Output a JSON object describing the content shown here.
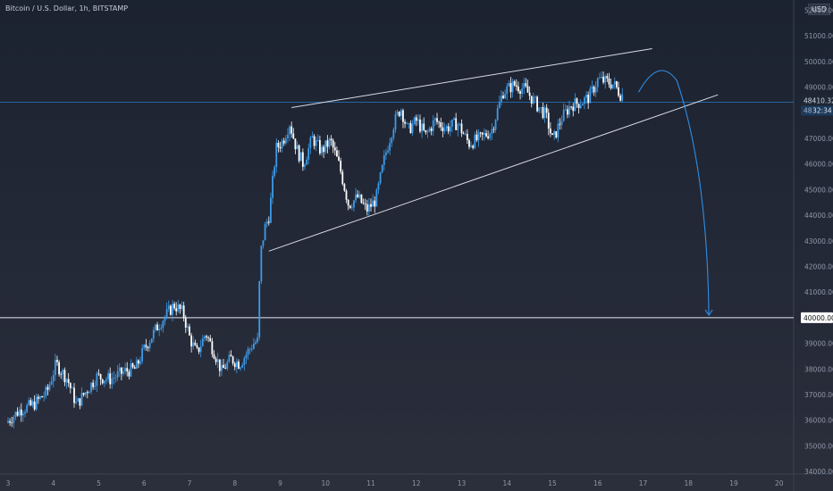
{
  "symbol_title": "Bitcoin / U.S. Dollar, 1h, BITSTAMP",
  "currency": "USD",
  "colors": {
    "candle_up": "#3d9be9",
    "candle_down": "#ffffff",
    "trendline": "#d8dce4",
    "arrow": "#2f8ee6",
    "support_line": "#e6e9ef",
    "current_price_line": "#2f8ee6"
  },
  "chart_data": {
    "type": "candlestick",
    "x_axis": {
      "ticks": [
        "3",
        "4",
        "5",
        "6",
        "7",
        "8",
        "9",
        "10",
        "11",
        "12",
        "13",
        "14",
        "15",
        "16",
        "17",
        "18",
        "19",
        "20"
      ]
    },
    "y_axis": {
      "ticks": [
        "34000.00",
        "35000.00",
        "36000.00",
        "37000.00",
        "38000.00",
        "39000.00",
        "40000.00",
        "41000.00",
        "42000.00",
        "43000.00",
        "44000.00",
        "45000.00",
        "46000.00",
        "47000.00",
        "48000.00",
        "49000.00",
        "50000.00",
        "51000.00",
        "52000.00"
      ],
      "range": [
        33900,
        52400
      ]
    },
    "price_path": [
      {
        "d": 3.0,
        "p": 35900
      },
      {
        "d": 3.3,
        "p": 36400
      },
      {
        "d": 3.6,
        "p": 36600
      },
      {
        "d": 3.9,
        "p": 37100
      },
      {
        "d": 4.1,
        "p": 38200
      },
      {
        "d": 4.35,
        "p": 37600
      },
      {
        "d": 4.55,
        "p": 36600
      },
      {
        "d": 4.75,
        "p": 37100
      },
      {
        "d": 5.0,
        "p": 37700
      },
      {
        "d": 5.3,
        "p": 37600
      },
      {
        "d": 5.6,
        "p": 37900
      },
      {
        "d": 5.85,
        "p": 38000
      },
      {
        "d": 6.05,
        "p": 38800
      },
      {
        "d": 6.35,
        "p": 39700
      },
      {
        "d": 6.7,
        "p": 40500
      },
      {
        "d": 6.9,
        "p": 40200
      },
      {
        "d": 7.05,
        "p": 39200
      },
      {
        "d": 7.2,
        "p": 38600
      },
      {
        "d": 7.4,
        "p": 39400
      },
      {
        "d": 7.6,
        "p": 38600
      },
      {
        "d": 7.75,
        "p": 37900
      },
      {
        "d": 7.95,
        "p": 38400
      },
      {
        "d": 8.15,
        "p": 38200
      },
      {
        "d": 8.3,
        "p": 38600
      },
      {
        "d": 8.45,
        "p": 39000
      },
      {
        "d": 8.55,
        "p": 39100
      },
      {
        "d": 8.6,
        "p": 42400
      },
      {
        "d": 8.7,
        "p": 43500
      },
      {
        "d": 8.8,
        "p": 44000
      },
      {
        "d": 8.95,
        "p": 46600
      },
      {
        "d": 9.1,
        "p": 46900
      },
      {
        "d": 9.25,
        "p": 47600
      },
      {
        "d": 9.4,
        "p": 46600
      },
      {
        "d": 9.55,
        "p": 46000
      },
      {
        "d": 9.75,
        "p": 47000
      },
      {
        "d": 9.95,
        "p": 46500
      },
      {
        "d": 10.15,
        "p": 46900
      },
      {
        "d": 10.35,
        "p": 45900
      },
      {
        "d": 10.55,
        "p": 44400
      },
      {
        "d": 10.75,
        "p": 44700
      },
      {
        "d": 10.95,
        "p": 44200
      },
      {
        "d": 11.15,
        "p": 44600
      },
      {
        "d": 11.35,
        "p": 46300
      },
      {
        "d": 11.55,
        "p": 47600
      },
      {
        "d": 11.7,
        "p": 48200
      },
      {
        "d": 11.85,
        "p": 47300
      },
      {
        "d": 12.05,
        "p": 47700
      },
      {
        "d": 12.25,
        "p": 47100
      },
      {
        "d": 12.45,
        "p": 47700
      },
      {
        "d": 12.7,
        "p": 47400
      },
      {
        "d": 12.95,
        "p": 47600
      },
      {
        "d": 13.2,
        "p": 46800
      },
      {
        "d": 13.45,
        "p": 47000
      },
      {
        "d": 13.7,
        "p": 47300
      },
      {
        "d": 13.95,
        "p": 48800
      },
      {
        "d": 14.2,
        "p": 49100
      },
      {
        "d": 14.45,
        "p": 48900
      },
      {
        "d": 14.7,
        "p": 48300
      },
      {
        "d": 14.9,
        "p": 47900
      },
      {
        "d": 15.05,
        "p": 46900
      },
      {
        "d": 15.25,
        "p": 47800
      },
      {
        "d": 15.45,
        "p": 48300
      },
      {
        "d": 15.65,
        "p": 48400
      },
      {
        "d": 15.85,
        "p": 48600
      },
      {
        "d": 16.05,
        "p": 49300
      },
      {
        "d": 16.25,
        "p": 49200
      },
      {
        "d": 16.4,
        "p": 49100
      },
      {
        "d": 16.55,
        "p": 48700
      }
    ],
    "annotations": {
      "wedge_upper": {
        "from": {
          "d": 9.25,
          "p": 48200
        },
        "to": {
          "d": 17.2,
          "p": 50500
        }
      },
      "wedge_lower": {
        "from": {
          "d": 8.75,
          "p": 42600
        },
        "to": {
          "d": 18.65,
          "p": 48700
        }
      },
      "support_level": 40000,
      "current_price": 48410.32,
      "forecast_arrow": {
        "start": {
          "d": 16.9,
          "p": 48800
        },
        "peak": {
          "d": 17.35,
          "p": 49600
        },
        "end": {
          "d": 18.45,
          "p": 40100
        }
      }
    },
    "price_labels": {
      "current": "48410.32",
      "current_partial": "48",
      "current_secondary": "32:34",
      "support": "40000.00"
    }
  }
}
